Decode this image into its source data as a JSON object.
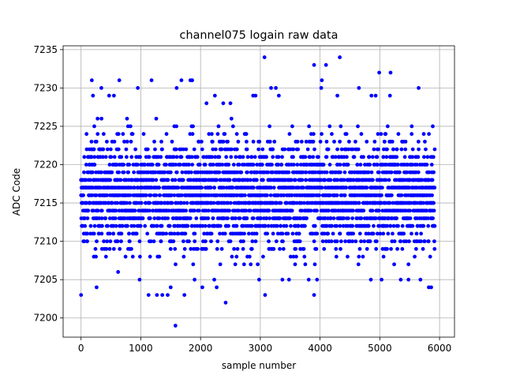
{
  "chart_data": {
    "type": "scatter",
    "title": "channel075 logain raw data",
    "xlabel": "sample number",
    "ylabel": "ADC Code",
    "xlim": [
      -300,
      6250
    ],
    "ylim": [
      7197.5,
      7235.5
    ],
    "xticks": [
      0,
      1000,
      2000,
      3000,
      4000,
      5000,
      6000
    ],
    "xtick_labels": [
      "0",
      "1000",
      "2000",
      "3000",
      "4000",
      "5000",
      "6000"
    ],
    "yticks": [
      7200,
      7205,
      7210,
      7215,
      7220,
      7225,
      7230,
      7235
    ],
    "ytick_labels": [
      "7200",
      "7205",
      "7210",
      "7215",
      "7220",
      "7225",
      "7230",
      "7235"
    ],
    "grid": true,
    "marker_color": "#0000ff",
    "sample_range": [
      0,
      5920
    ],
    "dense_band": [
      7207,
      7227
    ],
    "series": [
      {
        "points": [
          [
            0,
            7203
          ],
          [
            260,
            7204
          ],
          [
            1580,
            7199
          ],
          [
            1450,
            7203
          ],
          [
            1500,
            7204
          ],
          [
            2420,
            7202
          ],
          [
            1130,
            7203
          ],
          [
            1270,
            7203
          ],
          [
            1360,
            7203
          ],
          [
            1730,
            7203
          ],
          [
            3080,
            7203
          ],
          [
            3900,
            7203
          ],
          [
            2030,
            7204
          ],
          [
            2270,
            7204
          ],
          [
            620,
            7206
          ],
          [
            980,
            7205
          ],
          [
            1900,
            7205
          ],
          [
            2230,
            7205
          ],
          [
            2980,
            7205
          ],
          [
            3370,
            7205
          ],
          [
            3480,
            7205
          ],
          [
            3810,
            7205
          ],
          [
            3950,
            7205
          ],
          [
            4850,
            7205
          ],
          [
            5030,
            7205
          ],
          [
            5350,
            7205
          ],
          [
            5480,
            7205
          ],
          [
            5680,
            7205
          ],
          [
            5820,
            7204
          ],
          [
            5860,
            7204
          ],
          [
            180,
            7231
          ],
          [
            640,
            7231
          ],
          [
            1180,
            7231
          ],
          [
            1680,
            7231
          ],
          [
            1830,
            7231
          ],
          [
            1860,
            7231
          ],
          [
            3070,
            7234
          ],
          [
            4330,
            7234
          ],
          [
            3900,
            7233
          ],
          [
            4100,
            7233
          ],
          [
            4990,
            7232
          ],
          [
            5180,
            7232
          ],
          [
            950,
            7230
          ],
          [
            1600,
            7230
          ],
          [
            3180,
            7230
          ],
          [
            3260,
            7230
          ],
          [
            4030,
            7231
          ],
          [
            4020,
            7230
          ],
          [
            4650,
            7230
          ],
          [
            5650,
            7230
          ],
          [
            200,
            7229
          ],
          [
            470,
            7229
          ],
          [
            550,
            7229
          ],
          [
            2240,
            7229
          ],
          [
            2880,
            7229
          ],
          [
            2920,
            7229
          ],
          [
            3310,
            7229
          ],
          [
            4290,
            7229
          ],
          [
            4860,
            7229
          ],
          [
            4930,
            7229
          ],
          [
            5170,
            7229
          ],
          [
            340,
            7230
          ],
          [
            2100,
            7228
          ],
          [
            2380,
            7228
          ],
          [
            2500,
            7228
          ]
        ]
      }
    ]
  }
}
